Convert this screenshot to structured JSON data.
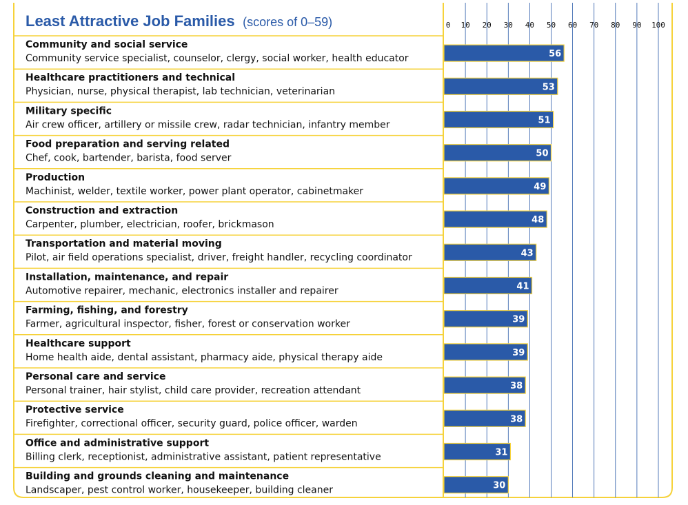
{
  "chart_data": {
    "type": "bar",
    "orientation": "horizontal",
    "title": "Least Attractive Job Families",
    "subtitle": "(scores of 0–59)",
    "xlim": [
      0,
      100
    ],
    "x_ticks": [
      "0",
      "10",
      "20",
      "30",
      "40",
      "50",
      "60",
      "70",
      "80",
      "90",
      "100"
    ],
    "grid": "vertical",
    "categories": [
      {
        "name": "Community and social service",
        "examples": "Community service specialist, counselor, clergy, social worker, health educator",
        "value": 56
      },
      {
        "name": "Healthcare practitioners and technical",
        "examples": "Physician, nurse, physical therapist, lab technician, veterinarian",
        "value": 53
      },
      {
        "name": "Military specific",
        "examples": "Air crew officer, artillery or missile crew, radar technician, infantry member",
        "value": 51
      },
      {
        "name": "Food preparation and serving related",
        "examples": "Chef, cook, bartender, barista, food server",
        "value": 50
      },
      {
        "name": "Production",
        "examples": "Machinist, welder, textile worker, power plant operator, cabinetmaker",
        "value": 49
      },
      {
        "name": "Construction and extraction",
        "examples": "Carpenter, plumber, electrician, roofer, brickmason",
        "value": 48
      },
      {
        "name": "Transportation and material moving",
        "examples": "Pilot, air field operations specialist, driver, freight handler, recycling coordinator",
        "value": 43
      },
      {
        "name": "Installation, maintenance, and repair",
        "examples": "Automotive repairer, mechanic, electronics installer and repairer",
        "value": 41
      },
      {
        "name": "Farming, fishing, and forestry",
        "examples": "Farmer, agricultural inspector, fisher, forest or conservation worker",
        "value": 39
      },
      {
        "name": "Healthcare support",
        "examples": "Home health aide, dental assistant, pharmacy aide, physical therapy aide",
        "value": 39
      },
      {
        "name": "Personal care and service",
        "examples": "Personal trainer, hair stylist, child care provider, recreation attendant",
        "value": 38
      },
      {
        "name": "Protective service",
        "examples": "Firefighter, correctional officer, security guard, police officer, warden",
        "value": 38
      },
      {
        "name": "Office and administrative support",
        "examples": "Billing clerk, receptionist, administrative assistant, patient representative",
        "value": 31
      },
      {
        "name": "Building and grounds cleaning and maintenance",
        "examples": "Landscaper, pest control worker, housekeeper, building cleaner",
        "value": 30
      }
    ],
    "colors": {
      "bar": "#2a5aa8",
      "bar_outline": "#f6d23a",
      "border": "#f6d23a",
      "grid": "#2a5aa8",
      "title": "#2a5aa8"
    }
  }
}
